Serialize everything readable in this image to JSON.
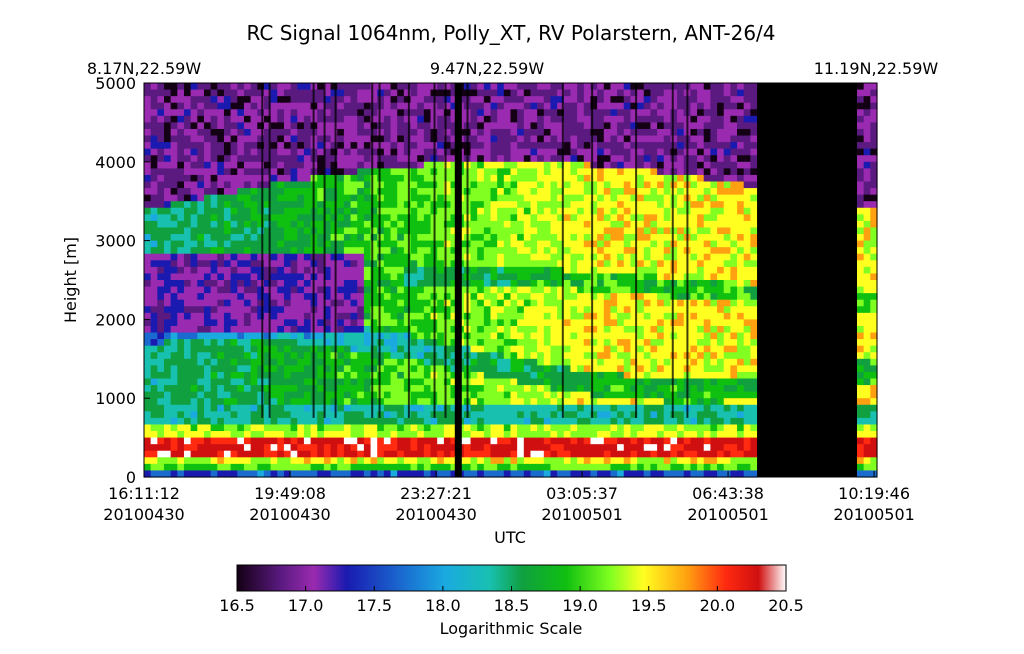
{
  "chart_data": {
    "type": "heatmap",
    "title": "RC Signal 1064nm, Polly_XT, RV Polarstern, ANT-26/4",
    "top_labels": [
      "8.17N,22.59W",
      "9.47N,22.59W",
      "11.19N,22.59W"
    ],
    "xlabel": "UTC",
    "ylabel": "Height [m]",
    "ylim": [
      0,
      5000
    ],
    "yticks": [
      "0",
      "1000",
      "2000",
      "3000",
      "4000",
      "5000"
    ],
    "xticks": [
      {
        "time": "16:11:12",
        "date": "20100430"
      },
      {
        "time": "19:49:08",
        "date": "20100430"
      },
      {
        "time": "23:27:21",
        "date": "20100430"
      },
      {
        "time": "03:05:37",
        "date": "20100501"
      },
      {
        "time": "06:43:38",
        "date": "20100501"
      },
      {
        "time": "10:19:46",
        "date": "20100501"
      }
    ],
    "colorbar": {
      "label": "Logarithmic Scale",
      "min": 16.5,
      "max": 20.5,
      "ticks": [
        "16.5",
        "17.0",
        "17.5",
        "18.0",
        "18.5",
        "19.0",
        "19.5",
        "20.0",
        "20.5"
      ]
    },
    "legend": "bottom colorbar",
    "grid": false,
    "colors": {
      "no_data": "#000000",
      "scale": [
        "#140014",
        "#5a1a80",
        "#9a2ab0",
        "#1a1ab0",
        "#1a6ad0",
        "#1aaae0",
        "#18c0b0",
        "#10a040",
        "#10c010",
        "#80ff20",
        "#ffff20",
        "#ffa010",
        "#ff2a10",
        "#d01010",
        "#ffffff"
      ]
    }
  }
}
